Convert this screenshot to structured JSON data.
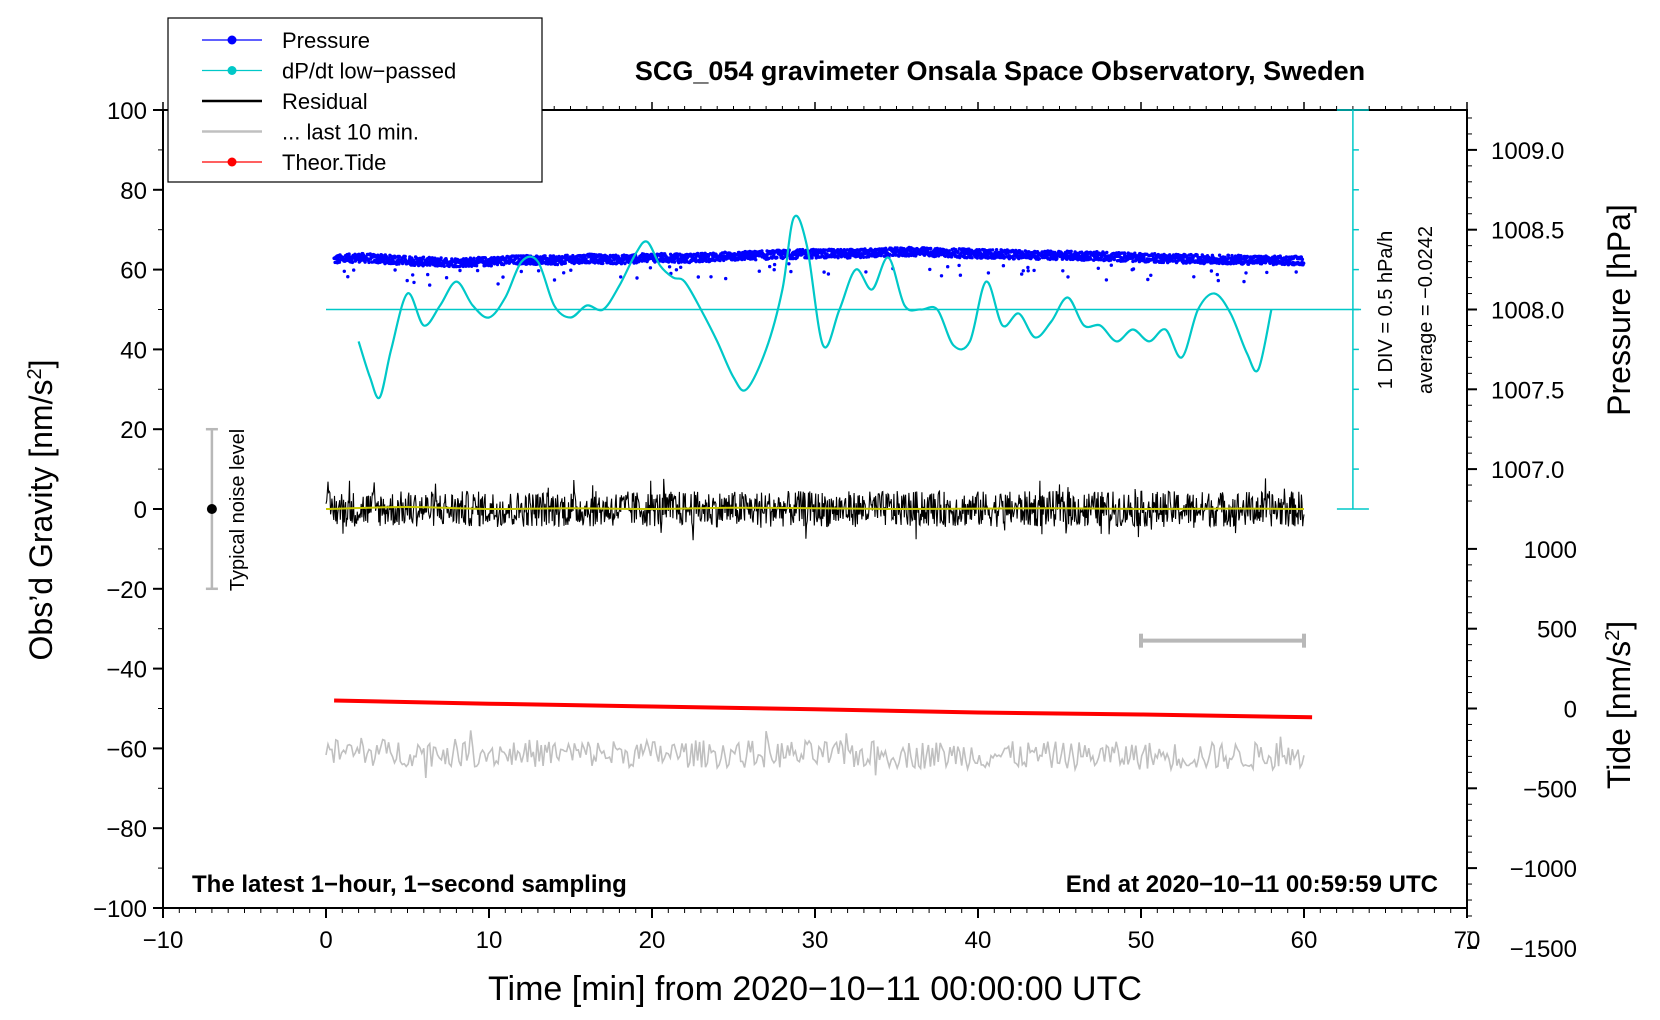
{
  "chart_data": {
    "type": "line",
    "title": "SCG_054 gravimeter Onsala Space Observatory, Sweden",
    "xlabel": "Time [min] from 2020−10−11 00:00:00 UTC",
    "ylabel_left_prefix": "Obs’d Gravity [nm/s",
    "ylabel_left_sup": "2",
    "ylabel_left_suffix": "]",
    "ylabel_right_pressure": "Pressure [hPa]",
    "ylabel_right_tide_prefix": "Tide [nm/s",
    "ylabel_right_tide_sup": "2",
    "ylabel_right_tide_suffix": "]",
    "xlim": [
      -10,
      70
    ],
    "ylim": [
      -100,
      100
    ],
    "x_ticks": [
      "−10",
      "0",
      "10",
      "20",
      "30",
      "40",
      "50",
      "60",
      "70"
    ],
    "x_tick_values": [
      -10,
      0,
      10,
      20,
      30,
      40,
      50,
      60,
      70
    ],
    "y_ticks": [
      "100",
      "80",
      "60",
      "40",
      "20",
      "0",
      "−20",
      "−40",
      "−60",
      "−80",
      "−100"
    ],
    "y_tick_values": [
      100,
      80,
      60,
      40,
      20,
      0,
      -20,
      -40,
      -60,
      -80,
      -100
    ],
    "pressure_ticks": [
      "1009.0",
      "1008.5",
      "1008.0",
      "1007.5",
      "1007.0"
    ],
    "pressure_tick_values": [
      1009.0,
      1008.5,
      1008.0,
      1007.5,
      1007.0
    ],
    "pressure_axis_map": {
      "p_at_gravity_50": 1008.0,
      "hpa_per_nm": 0.025
    },
    "tide_ticks": [
      "1000",
      "500",
      "0",
      "−500",
      "−1000",
      "−1500"
    ],
    "tide_tick_values": [
      1000,
      500,
      0,
      -500,
      -1000,
      -1500
    ],
    "tide_axis_map": {
      "tide_at_gravity_minus50": 0,
      "tide_per_nm": 25
    },
    "legend": [
      {
        "label": "Pressure",
        "color": "#0000ff",
        "marker": true
      },
      {
        "label": "dP/dt low−passed",
        "color": "#00c8c8",
        "marker": true
      },
      {
        "label": "Residual",
        "color": "#000000",
        "marker": false
      },
      {
        "label": "... last 10 min.",
        "color": "#c0c0c0",
        "marker": false
      },
      {
        "label": "Theor.Tide",
        "color": "#ff0000",
        "marker": true
      }
    ],
    "legend_position": "top-left",
    "bottom_left_text": "The latest 1−hour, 1−second sampling",
    "bottom_right_text": "End at 2020−10−11 00:59:59 UTC",
    "noise_level": {
      "label": "Typical noise level",
      "x": -7,
      "center": 0,
      "range": [
        -20,
        20
      ]
    },
    "dpdt_scale": {
      "label1": "1 DIV = 0.5 hPa/h",
      "label2": "average = −0.0242",
      "x": 63,
      "range": [
        0,
        100
      ],
      "baseline": 50
    },
    "last10_bar": {
      "x_range": [
        50,
        60
      ],
      "y": -33
    },
    "series": [
      {
        "name": "Pressure",
        "color": "#0000ff",
        "style": "points",
        "x": [
          0.5,
          2,
          4,
          6,
          8,
          10,
          12,
          14,
          16,
          18,
          20,
          22,
          24,
          26,
          28,
          30,
          32,
          34,
          36,
          38,
          40,
          42,
          44,
          46,
          48,
          50,
          52,
          54,
          56,
          58,
          60
        ],
        "y": [
          62.5,
          63,
          62.5,
          62,
          61.8,
          62,
          62.5,
          62.3,
          62.8,
          62.5,
          63,
          62.8,
          63.2,
          63.5,
          63.8,
          64,
          64,
          64.2,
          64.5,
          64.2,
          64,
          63.8,
          63.6,
          63.5,
          63.3,
          63,
          62.8,
          62.6,
          62.5,
          62.3,
          62.3
        ]
      },
      {
        "name": "dP/dt low−passed",
        "color": "#00c8c8",
        "style": "line",
        "x": [
          2,
          2.7,
          3.3,
          4,
          5,
          6,
          7,
          8,
          9,
          10,
          11,
          12,
          13,
          14,
          15,
          16,
          17,
          18,
          19,
          19.7,
          20.5,
          21.3,
          22,
          23,
          24,
          25,
          25.8,
          27,
          28,
          28.7,
          29.5,
          30.5,
          31.5,
          32.5,
          33.5,
          34.5,
          35.5,
          36.5,
          37.5,
          38.5,
          39.5,
          40.5,
          41.5,
          42.5,
          43.5,
          44.5,
          45.5,
          46.5,
          47.5,
          48.5,
          49.5,
          50.5,
          51.5,
          52.5,
          53.5,
          54.5,
          55.5,
          56.5,
          57.2,
          58
        ],
        "y": [
          42,
          33,
          28,
          40,
          54,
          46,
          51,
          57,
          51,
          48,
          53,
          62,
          62,
          51,
          48,
          51,
          50,
          56,
          64,
          67,
          61,
          58,
          57,
          50,
          42,
          33,
          30,
          40,
          55,
          73,
          66,
          41,
          50,
          60,
          55,
          63,
          51,
          50,
          50,
          41,
          42,
          57,
          46,
          49,
          43,
          47,
          53,
          46,
          46,
          42,
          45,
          42,
          45,
          38,
          50,
          54,
          49,
          39,
          35,
          50
        ]
      },
      {
        "name": "Residual",
        "color": "#000000",
        "style": "noise",
        "x": [
          0,
          60
        ],
        "y": [
          0,
          0
        ],
        "amplitude": 4.5
      },
      {
        "name": "Residual smoothed",
        "color": "#c8c800",
        "style": "line",
        "x": [
          0,
          5,
          10,
          15,
          20,
          25,
          30,
          35,
          40,
          45,
          50,
          55,
          60
        ],
        "y": [
          0,
          0.5,
          0,
          0.2,
          0,
          0.3,
          0.2,
          0,
          0.1,
          0.2,
          0,
          0.1,
          0
        ]
      },
      {
        "name": "... last 10 min.",
        "color": "#c0c0c0",
        "style": "noise",
        "x": [
          0,
          60
        ],
        "y": [
          -61,
          -62
        ],
        "amplitude": 3.5
      },
      {
        "name": "Theor.Tide",
        "color": "#ff0000",
        "style": "thick-line",
        "x": [
          0.5,
          10,
          20,
          30,
          40,
          50,
          60.5
        ],
        "y": [
          -48,
          -48.8,
          -49.5,
          -50.2,
          -51,
          -51.5,
          -52.2
        ]
      }
    ]
  }
}
